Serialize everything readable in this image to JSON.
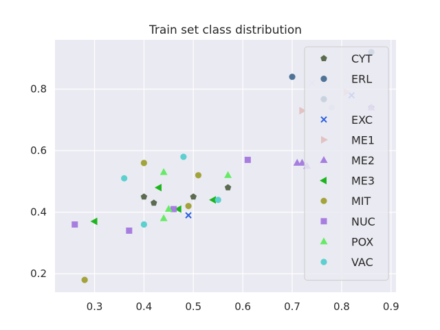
{
  "chart_data": {
    "type": "scatter",
    "title": "Train set class distribution",
    "xlabel": "",
    "ylabel": "",
    "xlim": [
      0.22,
      0.91
    ],
    "ylim": [
      0.14,
      0.96
    ],
    "xticks": [
      0.3,
      0.4,
      0.5,
      0.6,
      0.7,
      0.8,
      0.9
    ],
    "yticks": [
      0.2,
      0.4,
      0.6,
      0.8
    ],
    "grid": true,
    "legend_position": "upper right",
    "series": [
      {
        "name": "CYT",
        "marker": "pentagon",
        "color": "#5b6b4f",
        "points": [
          [
            0.4,
            0.45
          ],
          [
            0.42,
            0.43
          ],
          [
            0.5,
            0.45
          ],
          [
            0.57,
            0.48
          ],
          [
            0.86,
            0.74
          ]
        ]
      },
      {
        "name": "ERL",
        "marker": "circle",
        "color": "#4e7396",
        "points": [
          [
            0.7,
            0.84
          ],
          [
            0.86,
            0.92
          ]
        ]
      },
      {
        "name": "",
        "marker": "circle",
        "color": "#c9d3e0",
        "points": [
          [
            0.78,
            0.74
          ]
        ]
      },
      {
        "name": "EXC",
        "marker": "x",
        "color": "#2b5fe0",
        "points": [
          [
            0.49,
            0.39
          ],
          [
            0.82,
            0.78
          ]
        ]
      },
      {
        "name": "",
        "marker": "x",
        "color": "#c9d3f0",
        "points": [
          [
            0.74,
            0.82
          ]
        ]
      },
      {
        "name": "ME1",
        "marker": "triangle-right",
        "color": "#e2c2c2",
        "points": [
          [
            0.72,
            0.73
          ],
          [
            0.81,
            0.79
          ]
        ]
      },
      {
        "name": "ME2",
        "marker": "triangle-up",
        "color": "#a57ee0",
        "points": [
          [
            0.71,
            0.56
          ],
          [
            0.72,
            0.56
          ],
          [
            0.73,
            0.55
          ],
          [
            0.86,
            0.74
          ]
        ]
      },
      {
        "name": "ME3",
        "marker": "triangle-left",
        "color": "#1db51d",
        "points": [
          [
            0.3,
            0.37
          ],
          [
            0.43,
            0.48
          ],
          [
            0.47,
            0.41
          ],
          [
            0.54,
            0.44
          ]
        ]
      },
      {
        "name": "MIT",
        "marker": "circle",
        "color": "#a3a33c",
        "points": [
          [
            0.28,
            0.18
          ],
          [
            0.4,
            0.56
          ],
          [
            0.49,
            0.42
          ],
          [
            0.51,
            0.52
          ]
        ]
      },
      {
        "name": "NUC",
        "marker": "square",
        "color": "#a77ee0",
        "points": [
          [
            0.26,
            0.36
          ],
          [
            0.37,
            0.34
          ],
          [
            0.46,
            0.41
          ],
          [
            0.61,
            0.57
          ]
        ]
      },
      {
        "name": "POX",
        "marker": "triangle-up",
        "color": "#66ea66",
        "points": [
          [
            0.44,
            0.53
          ],
          [
            0.44,
            0.38
          ],
          [
            0.45,
            0.41
          ],
          [
            0.57,
            0.52
          ]
        ]
      },
      {
        "name": "VAC",
        "marker": "circle",
        "color": "#5ccfcf",
        "points": [
          [
            0.36,
            0.51
          ],
          [
            0.4,
            0.36
          ],
          [
            0.48,
            0.58
          ],
          [
            0.55,
            0.44
          ]
        ]
      }
    ],
    "legend": [
      {
        "name": "CYT",
        "marker": "pentagon",
        "color": "#5b6b4f"
      },
      {
        "name": "ERL",
        "marker": "circle",
        "color": "#4e7396"
      },
      {
        "name": "",
        "marker": "circle",
        "color": "#c9d3e0"
      },
      {
        "name": "EXC",
        "marker": "x",
        "color": "#2b5fe0"
      },
      {
        "name": "ME1",
        "marker": "triangle-right",
        "color": "#e2c2c2"
      },
      {
        "name": "ME2",
        "marker": "triangle-up",
        "color": "#a57ee0"
      },
      {
        "name": "ME3",
        "marker": "triangle-left",
        "color": "#1db51d"
      },
      {
        "name": "MIT",
        "marker": "circle",
        "color": "#a3a33c"
      },
      {
        "name": "NUC",
        "marker": "square",
        "color": "#a77ee0"
      },
      {
        "name": "POX",
        "marker": "triangle-up",
        "color": "#66ea66"
      },
      {
        "name": "VAC",
        "marker": "circle",
        "color": "#5ccfcf"
      }
    ],
    "colors": {
      "plot_background": "#eaeaf2",
      "grid": "#ffffff",
      "legend_background": "#eaeaf2",
      "legend_border": "#cccccc"
    }
  }
}
